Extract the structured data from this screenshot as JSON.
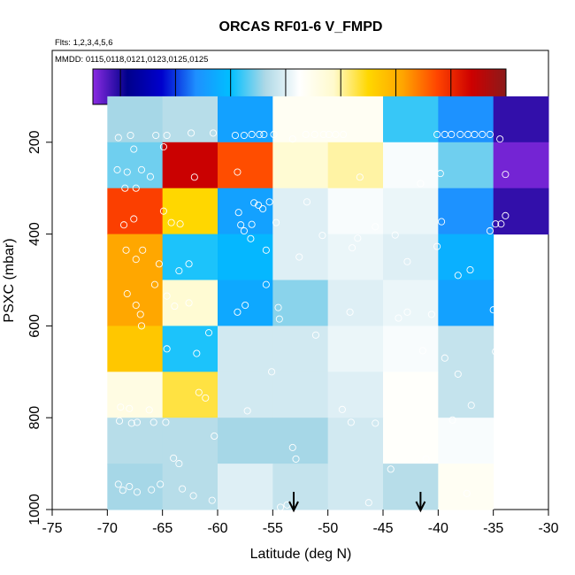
{
  "chart_data": {
    "type": "heatmap",
    "title": "ORCAS RF01-6 V_FMPD",
    "subtitle_flights": "Flts: 1,2,3,4,5,6",
    "subtitle_dates": "MMDD: 0115,0118,0121,0123,0125,0125",
    "xlabel": "Latitude (deg N)",
    "ylabel": "PSXC (mbar)",
    "xlim": [
      -75,
      -30
    ],
    "ylim": [
      1000,
      0
    ],
    "x_ticks": [
      -75,
      -70,
      -65,
      -60,
      -55,
      -50,
      -45,
      -40,
      -35,
      -30
    ],
    "y_ticks": [
      200,
      400,
      600,
      800,
      1000
    ],
    "colorbar": {
      "range": [
        -35,
        40
      ],
      "ticks": [
        -30,
        -20,
        -10,
        0,
        10,
        20,
        30,
        40
      ],
      "colors": [
        "#8a2be2",
        "#00008b",
        "#0000cd",
        "#1e90ff",
        "#00bfff",
        "#add8e6",
        "#ffffff",
        "#fffacd",
        "#ffd700",
        "#ffa500",
        "#ff4500",
        "#cd0000",
        "#8b1a1a"
      ]
    },
    "x_bins": [
      -70,
      -65,
      -60,
      -55,
      -50,
      -45,
      -40,
      -35,
      -30
    ],
    "p_bins": [
      100,
      200,
      300,
      400,
      500,
      600,
      700,
      800,
      900,
      1000
    ],
    "cell_values": [
      [
        -4,
        -3,
        -14,
        4,
        4,
        -8,
        -16,
        -31
      ],
      [
        -6,
        34,
        27,
        8,
        10,
        2,
        -6,
        -34
      ],
      [
        28,
        15,
        -14,
        0,
        2,
        1,
        -16,
        -31
      ],
      [
        21,
        -9,
        -11,
        0,
        1,
        0,
        -12,
        null
      ],
      [
        21,
        8,
        -13,
        -5,
        0,
        1,
        -14,
        null
      ],
      [
        17,
        -9,
        -1,
        -1,
        1,
        2,
        -2,
        null
      ],
      [
        6,
        13,
        -1,
        -1,
        0,
        3,
        -2,
        null
      ],
      [
        -3,
        -3,
        -4,
        -4,
        -1,
        3,
        2,
        null
      ],
      [
        -4,
        -3,
        0,
        -2,
        -1,
        -3,
        4,
        null
      ]
    ],
    "observations": [
      [
        -69.0,
        190
      ],
      [
        -67.9,
        185
      ],
      [
        -67.6,
        215
      ],
      [
        -65.6,
        185
      ],
      [
        -64.6,
        185
      ],
      [
        -64.9,
        210
      ],
      [
        -62.4,
        180
      ],
      [
        -60.4,
        180
      ],
      [
        -58.4,
        185
      ],
      [
        -57.6,
        185
      ],
      [
        -56.9,
        183
      ],
      [
        -56.2,
        183
      ],
      [
        -55.8,
        183
      ],
      [
        -54.9,
        183
      ],
      [
        -53.2,
        193
      ],
      [
        -52.0,
        183
      ],
      [
        -51.2,
        183
      ],
      [
        -50.4,
        183
      ],
      [
        -49.9,
        183
      ],
      [
        -49.3,
        183
      ],
      [
        -48.6,
        183
      ],
      [
        -40.1,
        183
      ],
      [
        -39.4,
        183
      ],
      [
        -38.8,
        183
      ],
      [
        -38.0,
        183
      ],
      [
        -37.3,
        183
      ],
      [
        -36.7,
        183
      ],
      [
        -36.0,
        183
      ],
      [
        -35.3,
        183
      ],
      [
        -34.4,
        193
      ],
      [
        -69.1,
        260
      ],
      [
        -68.2,
        265
      ],
      [
        -66.9,
        260
      ],
      [
        -68.4,
        300
      ],
      [
        -67.4,
        300
      ],
      [
        -66.1,
        275
      ],
      [
        -62.1,
        276
      ],
      [
        -58.2,
        265
      ],
      [
        -47.1,
        276
      ],
      [
        -41.6,
        290
      ],
      [
        -39.8,
        268
      ],
      [
        -33.9,
        270
      ],
      [
        -67.6,
        367
      ],
      [
        -68.5,
        380
      ],
      [
        -64.9,
        350
      ],
      [
        -64.2,
        375
      ],
      [
        -63.4,
        378
      ],
      [
        -58.1,
        353
      ],
      [
        -57.9,
        380
      ],
      [
        -57.6,
        393
      ],
      [
        -56.9,
        379
      ],
      [
        -56.3,
        337
      ],
      [
        -55.9,
        345
      ],
      [
        -56.7,
        332
      ],
      [
        -55.3,
        330
      ],
      [
        -57.0,
        410
      ],
      [
        -54.7,
        375
      ],
      [
        -51.9,
        330
      ],
      [
        -50.5,
        403
      ],
      [
        -47.3,
        409
      ],
      [
        -45.7,
        384
      ],
      [
        -43.9,
        402
      ],
      [
        -39.7,
        373
      ],
      [
        -35.3,
        393
      ],
      [
        -34.8,
        378
      ],
      [
        -34.3,
        378
      ],
      [
        -33.9,
        360
      ],
      [
        -67.4,
        455
      ],
      [
        -68.3,
        435
      ],
      [
        -66.8,
        435
      ],
      [
        -63.5,
        480
      ],
      [
        -65.3,
        465
      ],
      [
        -62.6,
        465
      ],
      [
        -55.6,
        435
      ],
      [
        -52.6,
        450
      ],
      [
        -47.8,
        430
      ],
      [
        -42.8,
        460
      ],
      [
        -40.1,
        427
      ],
      [
        -38.2,
        490
      ],
      [
        -37.1,
        478
      ],
      [
        -68.2,
        530
      ],
      [
        -67.4,
        555
      ],
      [
        -67.0,
        575
      ],
      [
        -65.7,
        510
      ],
      [
        -64.6,
        535
      ],
      [
        -63.9,
        557
      ],
      [
        -62.6,
        550
      ],
      [
        -58.2,
        570
      ],
      [
        -57.5,
        555
      ],
      [
        -55.6,
        510
      ],
      [
        -54.5,
        560
      ],
      [
        -54.4,
        585
      ],
      [
        -43.6,
        583
      ],
      [
        -42.8,
        570
      ],
      [
        -40.6,
        575
      ],
      [
        -35.0,
        565
      ],
      [
        -48.0,
        570
      ],
      [
        -66.9,
        600
      ],
      [
        -60.8,
        615
      ],
      [
        -64.6,
        650
      ],
      [
        -61.9,
        660
      ],
      [
        -51.1,
        620
      ],
      [
        -41.4,
        654
      ],
      [
        -34.8,
        656
      ],
      [
        -39.4,
        670
      ],
      [
        -55.1,
        700
      ],
      [
        -38.2,
        705
      ],
      [
        -68.8,
        777
      ],
      [
        -68.0,
        780
      ],
      [
        -67.3,
        810
      ],
      [
        -66.2,
        783
      ],
      [
        -65.8,
        810
      ],
      [
        -64.7,
        810
      ],
      [
        -61.7,
        745
      ],
      [
        -61.1,
        757
      ],
      [
        -57.3,
        785
      ],
      [
        -48.7,
        782
      ],
      [
        -47.9,
        810
      ],
      [
        -45.7,
        812
      ],
      [
        -38.7,
        805
      ],
      [
        -37.0,
        773
      ],
      [
        -68.9,
        807
      ],
      [
        -67.8,
        812
      ],
      [
        -63.5,
        900
      ],
      [
        -64.0,
        888
      ],
      [
        -60.3,
        840
      ],
      [
        -52.9,
        890
      ],
      [
        -53.2,
        865
      ],
      [
        -44.3,
        912
      ],
      [
        -41.1,
        890
      ],
      [
        -69.0,
        945
      ],
      [
        -68.6,
        958
      ],
      [
        -68.0,
        950
      ],
      [
        -67.3,
        962
      ],
      [
        -66.0,
        957
      ],
      [
        -65.2,
        945
      ],
      [
        -63.2,
        955
      ],
      [
        -62.2,
        970
      ],
      [
        -60.5,
        980
      ],
      [
        -54.3,
        995
      ],
      [
        -53.7,
        990
      ],
      [
        -46.3,
        985
      ],
      [
        -37.4,
        965
      ]
    ],
    "arrows_at_latitude": [
      -53.1,
      -41.6
    ]
  }
}
